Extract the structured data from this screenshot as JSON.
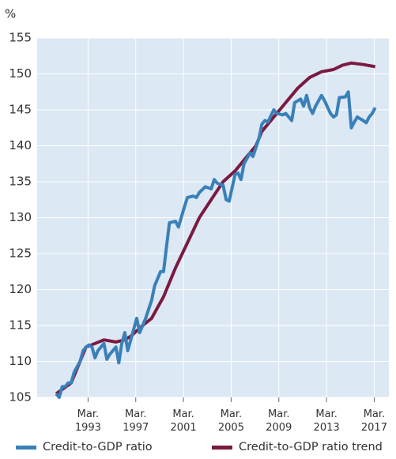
{
  "chart_data": {
    "type": "line",
    "y_label": "%",
    "xlim": [
      1988.9,
      2018.4
    ],
    "ylim": [
      105,
      155
    ],
    "yticks": [
      105,
      110,
      115,
      120,
      125,
      130,
      135,
      140,
      145,
      150,
      155
    ],
    "xticks": [
      {
        "value": 1993.17,
        "label": "Mar. 1993"
      },
      {
        "value": 1997.17,
        "label": "Mar. 1997"
      },
      {
        "value": 2001.17,
        "label": "Mar. 2001"
      },
      {
        "value": 2005.17,
        "label": "Mar. 2005"
      },
      {
        "value": 2009.17,
        "label": "Mar. 2009"
      },
      {
        "value": 2013.17,
        "label": "Mar. 2013"
      },
      {
        "value": 2017.17,
        "label": "Mar. 2017"
      }
    ],
    "grid": true,
    "legend": "bottom",
    "series": [
      {
        "name": "Credit-to-GDP ratio",
        "color": "#3a80b8",
        "x": [
          1990.5,
          1990.75,
          1991.0,
          1991.25,
          1991.5,
          1991.75,
          1992.0,
          1992.5,
          1992.75,
          1993.0,
          1993.25,
          1993.5,
          1993.75,
          1994.0,
          1994.25,
          1994.5,
          1994.75,
          1995.0,
          1995.5,
          1995.75,
          1996.0,
          1996.25,
          1996.5,
          1997.0,
          1997.25,
          1997.5,
          1997.75,
          1998.0,
          1998.5,
          1998.75,
          1999.25,
          1999.5,
          1999.75,
          2000.0,
          2000.5,
          2000.75,
          2001.25,
          2001.5,
          2002.0,
          2002.25,
          2002.5,
          2003.0,
          2003.5,
          2003.75,
          2004.0,
          2004.5,
          2004.75,
          2005.0,
          2005.5,
          2005.75,
          2006.0,
          2006.25,
          2006.75,
          2007.0,
          2007.5,
          2007.75,
          2008.0,
          2008.25,
          2008.75,
          2009.0,
          2009.5,
          2009.75,
          2010.25,
          2010.5,
          2011.0,
          2011.25,
          2011.5,
          2011.75,
          2012.0,
          2012.25,
          2012.75,
          2013.0,
          2013.5,
          2013.75,
          2014.0,
          2014.25,
          2014.75,
          2015.0,
          2015.25,
          2015.5,
          2015.75,
          2016.25,
          2016.5,
          2016.75,
          2017.0,
          2017.25
        ],
        "values": [
          105.5,
          105,
          106.5,
          106.5,
          107,
          107,
          108.5,
          110,
          111.5,
          112,
          112.3,
          112,
          110.5,
          111.5,
          112,
          112.5,
          110.3,
          111,
          112,
          109.8,
          112.5,
          114,
          111.5,
          114.5,
          116,
          114,
          115,
          116,
          118.5,
          120.5,
          122.5,
          122.5,
          126,
          129.3,
          129.5,
          128.7,
          131.5,
          132.8,
          133,
          132.8,
          133.5,
          134.3,
          134,
          135.3,
          134.8,
          134.5,
          132.5,
          132.3,
          136,
          136.2,
          135.3,
          137.5,
          139,
          138.5,
          141,
          143,
          143.5,
          143.3,
          145,
          144.5,
          144.3,
          144.5,
          143.5,
          146,
          146.5,
          145.5,
          147,
          145.3,
          144.5,
          145.5,
          147,
          146.3,
          144.5,
          144,
          144.3,
          146.7,
          146.8,
          147.5,
          142.5,
          143.3,
          144,
          143.5,
          143.2,
          144,
          144.5,
          145.3
        ]
      },
      {
        "name": "Credit-to-GDP ratio trend",
        "color": "#7a1a40",
        "x": [
          1990.5,
          1991.75,
          1992.5,
          1993.0,
          1993.75,
          1994.5,
          1995.5,
          1996.25,
          1996.75,
          1997.75,
          1998.5,
          1999.5,
          2000.5,
          2001.5,
          2002.5,
          2003.5,
          2004.5,
          2005.5,
          2006.25,
          2007.25,
          2007.75,
          2008.75,
          2009.75,
          2010.75,
          2011.75,
          2012.75,
          2013.75,
          2014.5,
          2015.25,
          2016.25,
          2017.25
        ],
        "values": [
          105.5,
          107,
          110,
          112,
          112.5,
          113,
          112.7,
          113,
          113.5,
          115,
          116,
          119,
          123,
          126.5,
          130,
          132.5,
          135,
          136.5,
          138,
          140,
          142,
          144,
          146,
          148,
          149.5,
          150.3,
          150.6,
          151.2,
          151.5,
          151.3,
          151
        ]
      }
    ]
  }
}
